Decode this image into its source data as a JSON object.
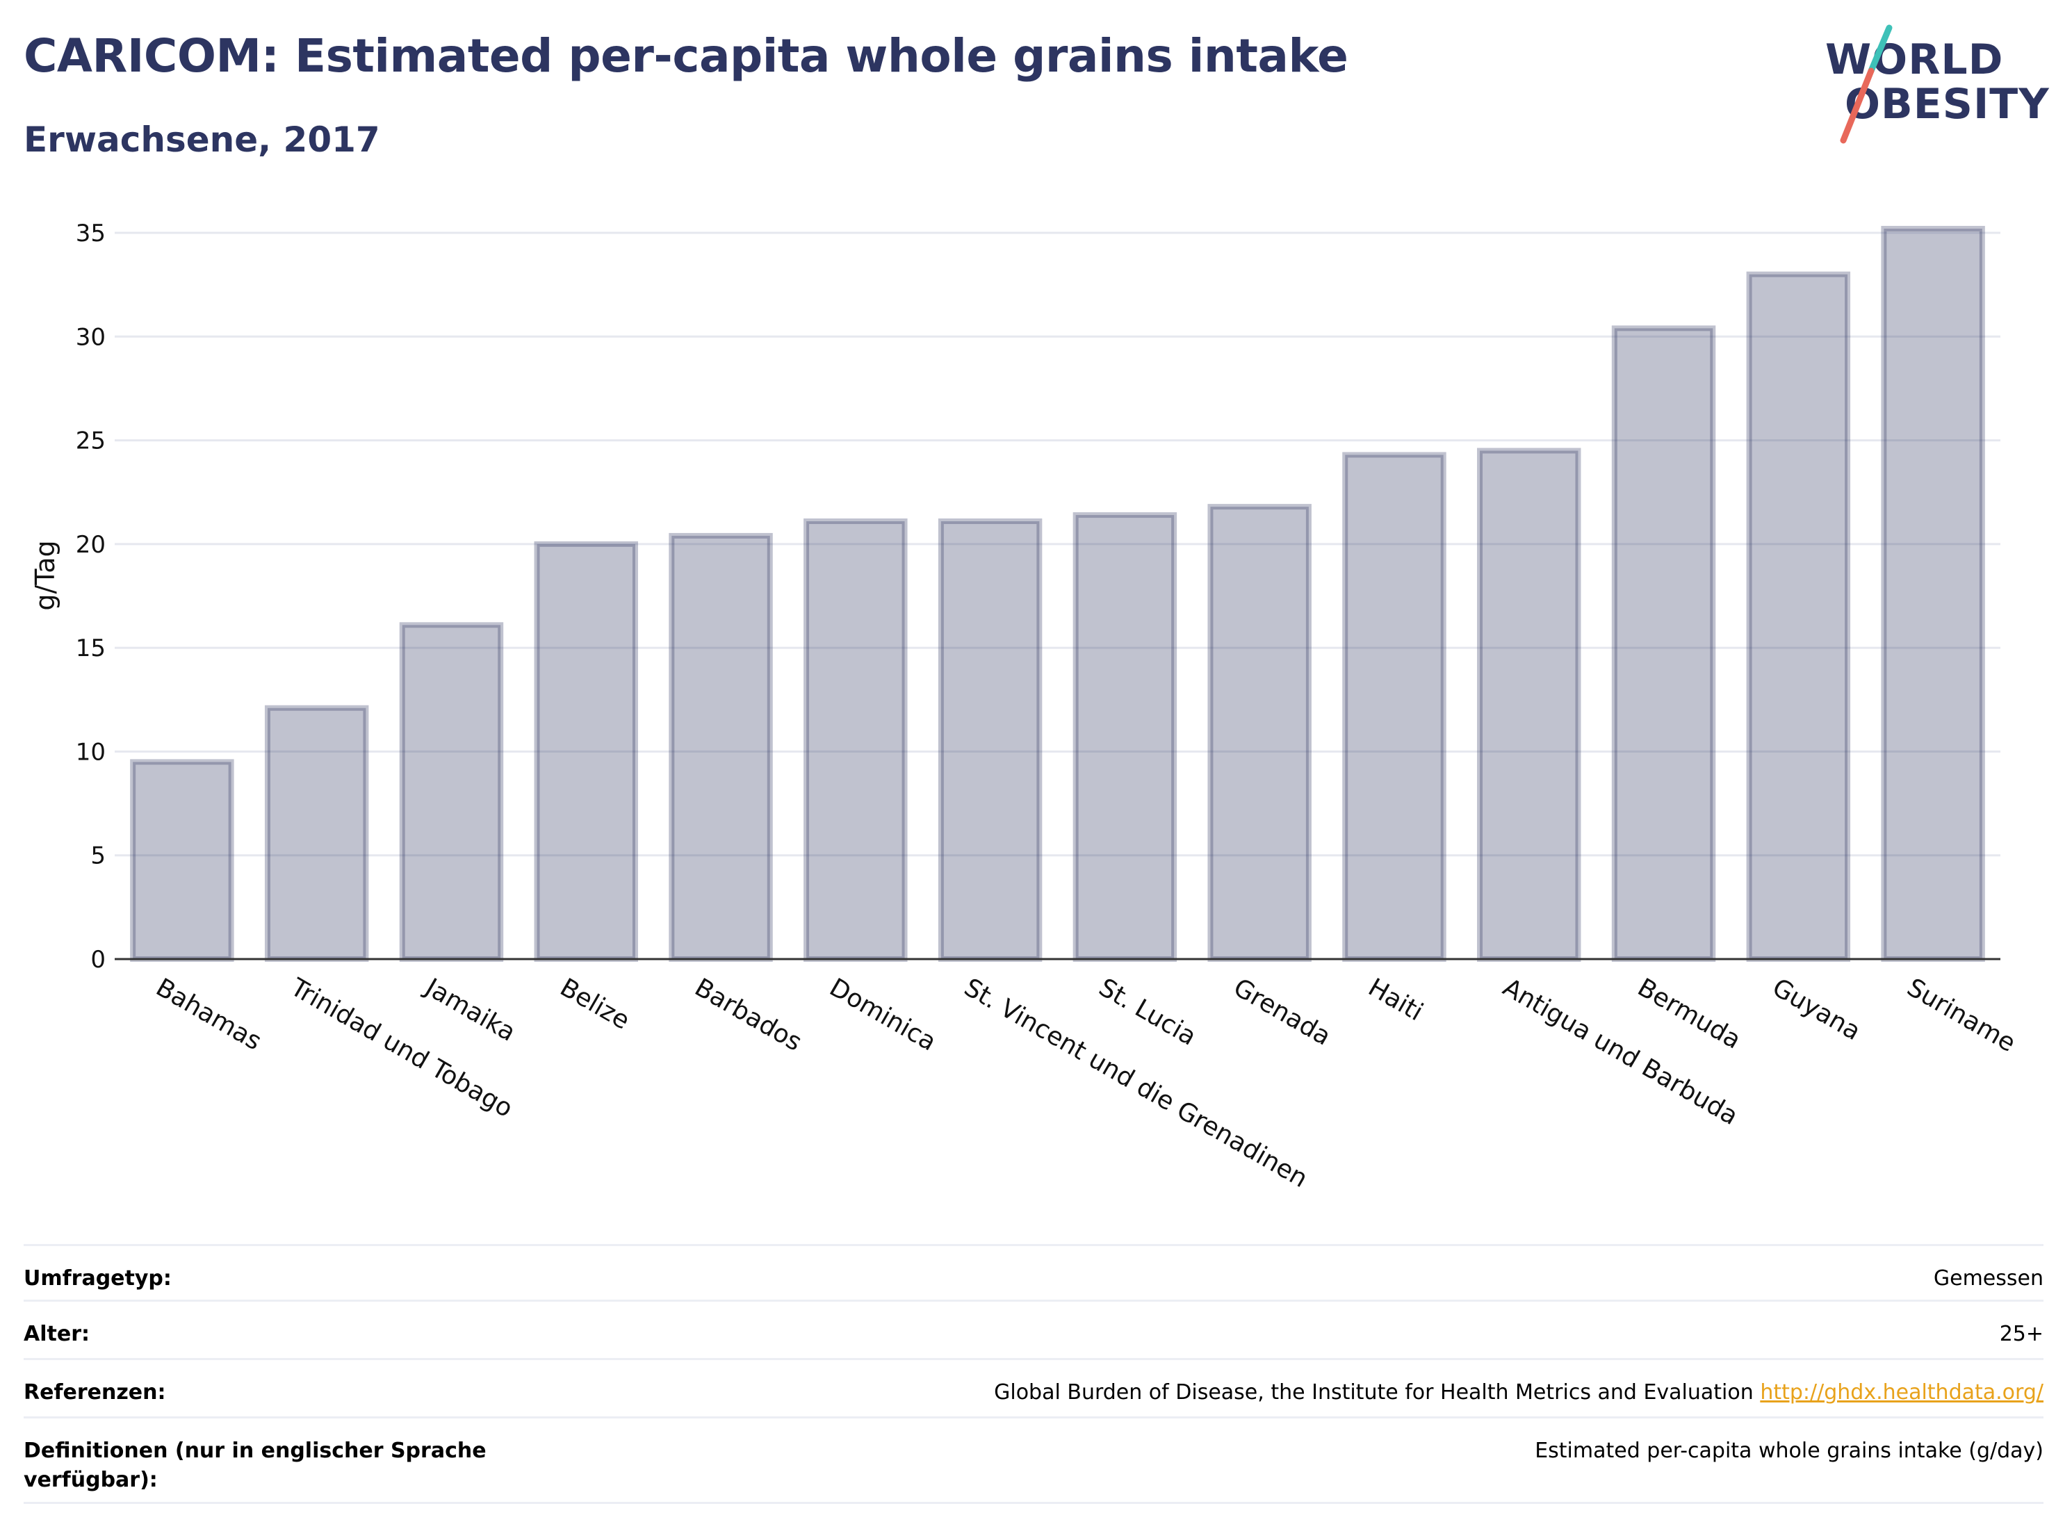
{
  "header": {
    "title": "CARICOM: Estimated per-capita whole grains intake",
    "subtitle": "Erwachsene, 2017"
  },
  "logo": {
    "line1": "WORLD",
    "line2": "OBESITY",
    "accent_colors": [
      "#3ec1b8",
      "#e8685a"
    ]
  },
  "chart_data": {
    "type": "bar",
    "ylabel": "g/Tag",
    "xlabel": "",
    "ylim": [
      0,
      35
    ],
    "yticks": [
      0,
      5,
      10,
      15,
      20,
      25,
      30,
      35
    ],
    "grid": true,
    "bar_color": "#2d3561",
    "categories": [
      "Bahamas",
      "Trinidad und Tobago",
      "Jamaika",
      "Belize",
      "Barbados",
      "Dominica",
      "St. Vincent und die Grenadinen",
      "St. Lucia",
      "Grenada",
      "Haiti",
      "Antigua und Barbuda",
      "Bermuda",
      "Guyana",
      "Suriname"
    ],
    "values": [
      9.5,
      12.1,
      16.1,
      20.0,
      20.4,
      21.1,
      21.1,
      21.4,
      21.8,
      24.3,
      24.5,
      30.4,
      33.0,
      35.2
    ]
  },
  "info": [
    {
      "label": "Umfragetyp:",
      "value": "Gemessen"
    },
    {
      "label": "Alter:",
      "value": "25+"
    },
    {
      "label": "Referenzen:",
      "value": "Global Burden of Disease, the Institute for Health Metrics and Evaluation",
      "link": "http://ghdx.healthdata.org/"
    },
    {
      "label": "Definitionen (nur in englischer Sprache verfügbar):",
      "value": "Estimated per-capita whole grains intake (g/day)"
    }
  ]
}
